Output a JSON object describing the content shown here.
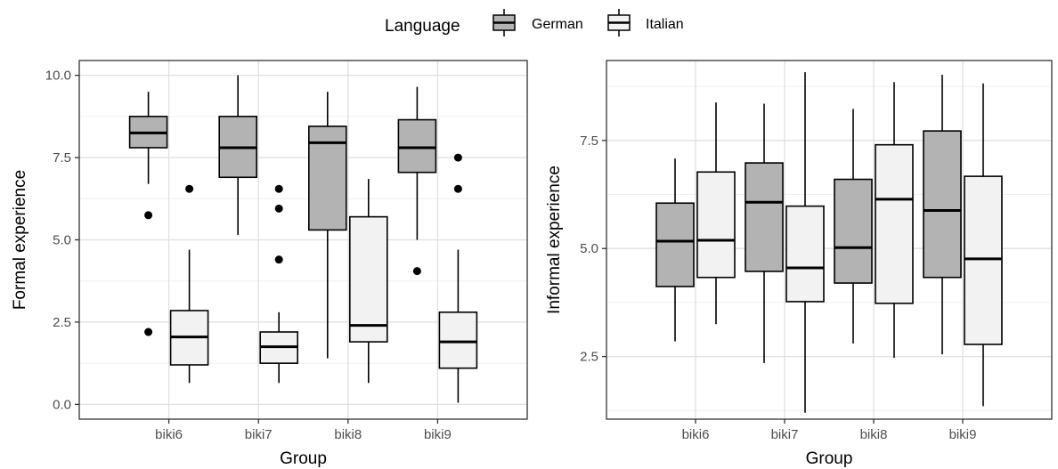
{
  "legend": {
    "title": "Language",
    "items": [
      {
        "label": "German",
        "color": "#b3b3b3"
      },
      {
        "label": "Italian",
        "color": "#f2f2f2"
      }
    ]
  },
  "chart_data": [
    {
      "type": "boxplot",
      "xlabel": "Group",
      "ylabel": "Formal experience",
      "ylim": [
        -0.45,
        10.45
      ],
      "yticks": [
        0.0,
        2.5,
        5.0,
        7.5,
        10.0
      ],
      "ytick_labels": [
        "0.0",
        "2.5",
        "5.0",
        "7.5",
        "10.0"
      ],
      "categories": [
        "biki6",
        "biki7",
        "biki8",
        "biki9"
      ],
      "grid": true,
      "series": [
        {
          "name": "German",
          "boxes": [
            {
              "min": 6.7,
              "q1": 7.8,
              "median": 8.25,
              "q3": 8.75,
              "max": 9.5,
              "outliers": [
                5.75,
                2.2
              ]
            },
            {
              "min": 5.15,
              "q1": 6.9,
              "median": 7.8,
              "q3": 8.75,
              "max": 10.0,
              "outliers": []
            },
            {
              "min": 1.4,
              "q1": 5.3,
              "median": 7.95,
              "q3": 8.45,
              "max": 9.5,
              "outliers": []
            },
            {
              "min": 5.0,
              "q1": 7.05,
              "median": 7.8,
              "q3": 8.65,
              "max": 9.65,
              "outliers": [
                4.05
              ]
            }
          ]
        },
        {
          "name": "Italian",
          "boxes": [
            {
              "min": 0.65,
              "q1": 1.2,
              "median": 2.05,
              "q3": 2.85,
              "max": 4.7,
              "outliers": [
                6.55
              ]
            },
            {
              "min": 0.65,
              "q1": 1.25,
              "median": 1.75,
              "q3": 2.2,
              "max": 2.8,
              "outliers": [
                6.55,
                5.95,
                4.4
              ]
            },
            {
              "min": 0.65,
              "q1": 1.9,
              "median": 2.4,
              "q3": 5.7,
              "max": 6.85,
              "outliers": []
            },
            {
              "min": 0.05,
              "q1": 1.1,
              "median": 1.9,
              "q3": 2.8,
              "max": 4.7,
              "outliers": [
                7.5,
                6.55
              ]
            }
          ]
        }
      ]
    },
    {
      "type": "boxplot",
      "xlabel": "Group",
      "ylabel": "Informal experience",
      "ylim": [
        1.05,
        9.35
      ],
      "yticks": [
        2.5,
        5.0,
        7.5
      ],
      "ytick_labels": [
        "2.5",
        "5.0",
        "7.5"
      ],
      "categories": [
        "biki6",
        "biki7",
        "biki8",
        "biki9"
      ],
      "grid": true,
      "series": [
        {
          "name": "German",
          "boxes": [
            {
              "min": 2.85,
              "q1": 4.12,
              "median": 5.17,
              "q3": 6.05,
              "max": 7.08,
              "outliers": []
            },
            {
              "min": 2.35,
              "q1": 4.47,
              "median": 6.07,
              "q3": 6.98,
              "max": 8.35,
              "outliers": []
            },
            {
              "min": 2.8,
              "q1": 4.2,
              "median": 5.02,
              "q3": 6.6,
              "max": 8.23,
              "outliers": []
            },
            {
              "min": 2.55,
              "q1": 4.33,
              "median": 5.88,
              "q3": 7.72,
              "max": 9.02,
              "outliers": []
            }
          ]
        },
        {
          "name": "Italian",
          "boxes": [
            {
              "min": 3.25,
              "q1": 4.33,
              "median": 5.19,
              "q3": 6.77,
              "max": 8.38,
              "outliers": []
            },
            {
              "min": 1.2,
              "q1": 3.77,
              "median": 4.55,
              "q3": 5.98,
              "max": 9.08,
              "outliers": []
            },
            {
              "min": 2.47,
              "q1": 3.73,
              "median": 6.14,
              "q3": 7.4,
              "max": 8.85,
              "outliers": []
            },
            {
              "min": 1.35,
              "q1": 2.78,
              "median": 4.76,
              "q3": 6.67,
              "max": 8.82,
              "outliers": []
            }
          ]
        }
      ]
    }
  ]
}
